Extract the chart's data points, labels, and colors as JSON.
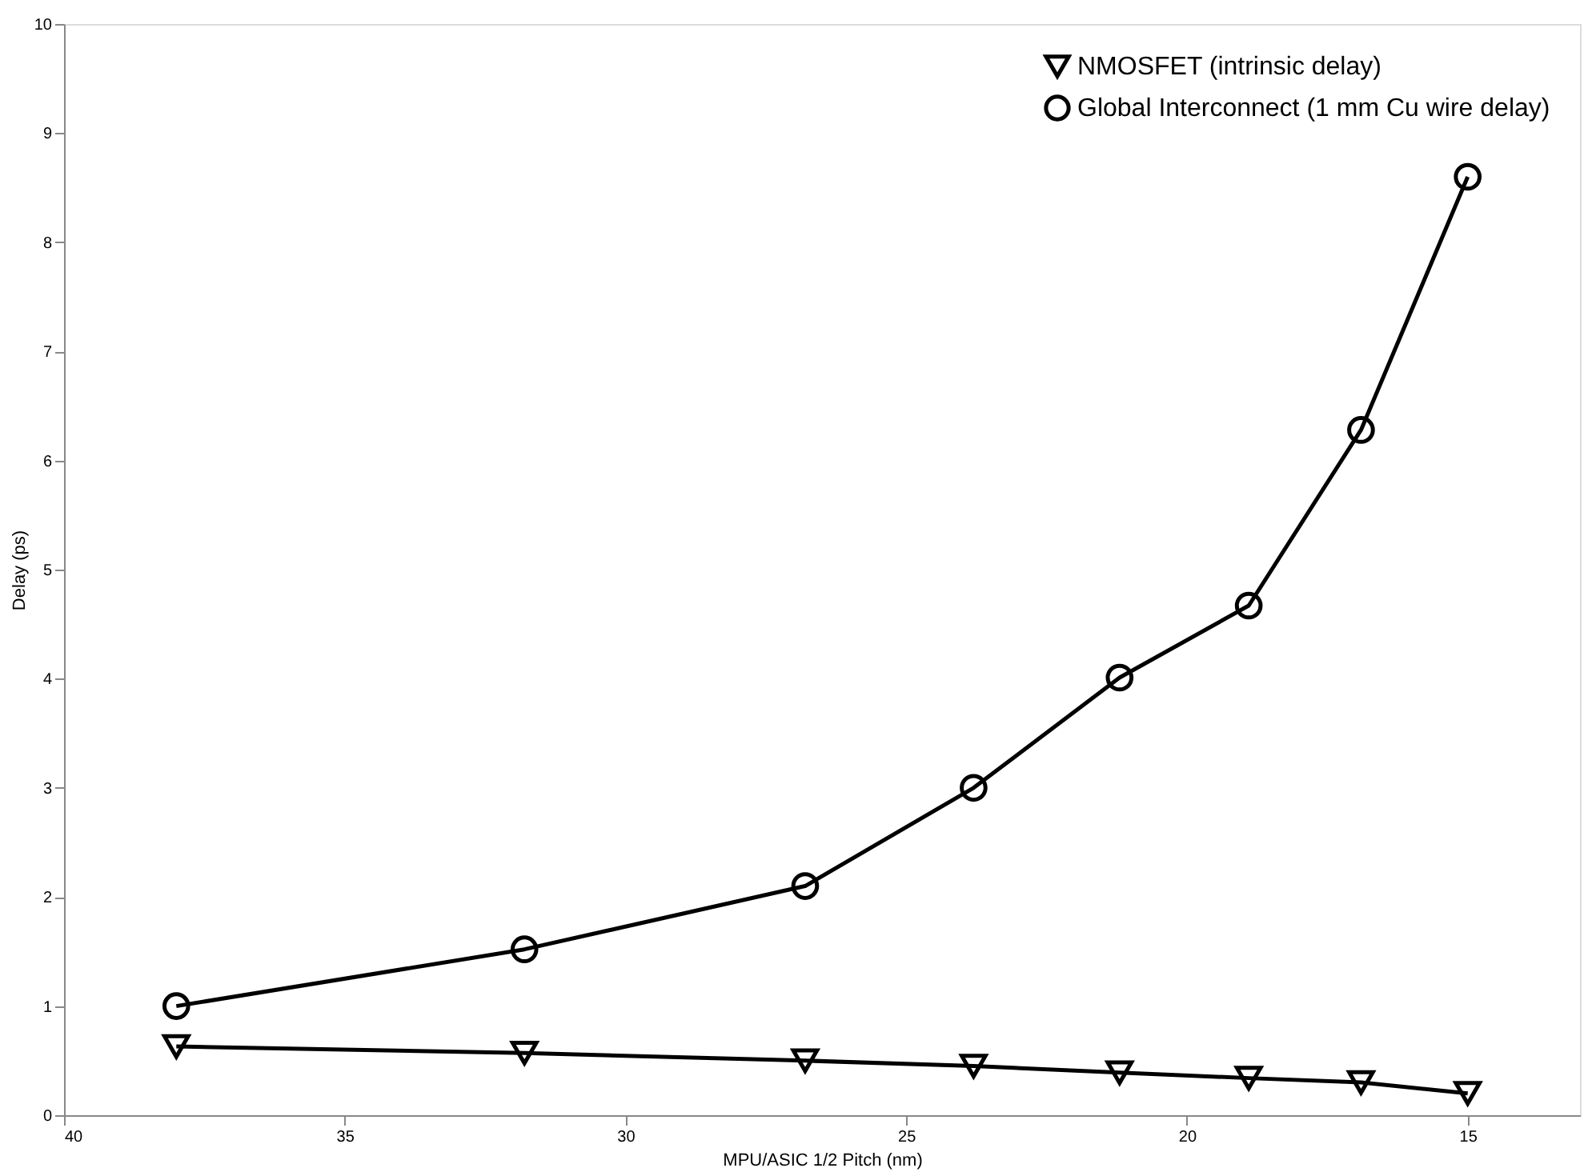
{
  "chart_data": {
    "type": "line",
    "xlabel": "MPU/ASIC 1/2 Pitch (nm)",
    "ylabel": "Delay (ps)",
    "x": [
      38,
      31.8,
      26.8,
      23.8,
      21.2,
      18.9,
      16.9,
      15.0
    ],
    "xlim": [
      40,
      13
    ],
    "xticks": [
      40,
      35,
      30,
      25,
      20,
      15
    ],
    "ylim": [
      0,
      10
    ],
    "yticks": [
      0,
      1,
      2,
      3,
      4,
      5,
      6,
      7,
      8,
      9,
      10
    ],
    "grid": false,
    "legend": "top right",
    "series": [
      {
        "name": "NMOSFET (intrinsic delay)",
        "color": "#000000",
        "marker": "triangle-down",
        "values": [
          0.63,
          0.57,
          0.5,
          0.45,
          0.39,
          0.34,
          0.3,
          0.2
        ]
      },
      {
        "name": "Global Interconnect (1 mm Cu wire delay)",
        "color": "#000000",
        "marker": "circle",
        "values": [
          1.0,
          1.52,
          2.1,
          3.0,
          4.01,
          4.67,
          6.28,
          8.6
        ]
      }
    ]
  }
}
